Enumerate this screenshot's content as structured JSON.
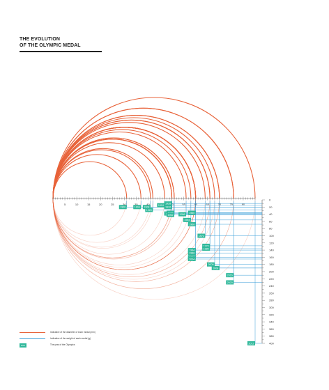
{
  "title": {
    "line1": "THE EVOLUTION",
    "line2": "OF THE OLYMPIC MEDAL"
  },
  "colors": {
    "diameter": "#e8633a",
    "weight": "#3a9fd8",
    "year": "#2fb89a"
  },
  "axis": {
    "diameter_ticks": [
      5,
      10,
      15,
      20,
      25,
      30,
      35,
      40,
      45,
      50,
      55,
      60,
      65,
      70,
      75,
      80
    ],
    "diameter_max": 85,
    "weight_ticks": [
      0,
      20,
      40,
      60,
      80,
      100,
      120,
      140,
      160,
      180,
      200,
      220,
      240,
      260,
      280,
      300,
      320,
      340,
      360,
      380,
      400
    ],
    "weight_max": 400
  },
  "chart_data": {
    "type": "diagram",
    "description_items": [
      "diameter (mm)",
      "weight (g)",
      "year"
    ],
    "medals": [
      {
        "year": "1900",
        "diameter": 31,
        "weight": 20
      },
      {
        "year": "1904",
        "diameter": 37,
        "weight": 20
      },
      {
        "year": "1908",
        "diameter": 41,
        "weight": 20
      },
      {
        "year": "1920",
        "diameter": 42,
        "weight": 28
      },
      {
        "year": "1924",
        "diameter": 47,
        "weight": 15
      },
      {
        "year": "1928",
        "diameter": 50,
        "weight": 10
      },
      {
        "year": "1932",
        "diameter": 50,
        "weight": 20
      },
      {
        "year": "1936",
        "diameter": 50,
        "weight": 38
      },
      {
        "year": "1948",
        "diameter": 51,
        "weight": 36
      },
      {
        "year": "1952",
        "diameter": 51,
        "weight": 42
      },
      {
        "year": "1956",
        "diameter": 56,
        "weight": 40
      },
      {
        "year": "1960",
        "diameter": 60,
        "weight": 36
      },
      {
        "year": "1964",
        "diameter": 58,
        "weight": 56
      },
      {
        "year": "1968",
        "diameter": 60,
        "weight": 68
      },
      {
        "year": "1972",
        "diameter": 64,
        "weight": 100
      },
      {
        "year": "1976",
        "diameter": 66,
        "weight": 128
      },
      {
        "year": "1980",
        "diameter": 66,
        "weight": 136
      },
      {
        "year": "1984",
        "diameter": 60,
        "weight": 140
      },
      {
        "year": "1988",
        "diameter": 60,
        "weight": 148
      },
      {
        "year": "1992",
        "diameter": 70,
        "weight": 190
      },
      {
        "year": "1996",
        "diameter": 60,
        "weight": 160
      },
      {
        "year": "2000",
        "diameter": 68,
        "weight": 180
      },
      {
        "year": "2004",
        "diameter": 60,
        "weight": 165
      },
      {
        "year": "2008",
        "diameter": 70,
        "weight": 190
      },
      {
        "year": "2012",
        "diameter": 85,
        "weight": 400
      },
      {
        "year": "2016",
        "diameter": 76,
        "weight": 210
      },
      {
        "year": "2020",
        "diameter": 76,
        "weight": 230
      }
    ]
  },
  "legend": {
    "diameter": "Indicative of the diameter of each medal (mm)",
    "weight": "Indicative of the weight of each medal (g)",
    "year_box": "2012",
    "year": "The year of the Olympics"
  }
}
